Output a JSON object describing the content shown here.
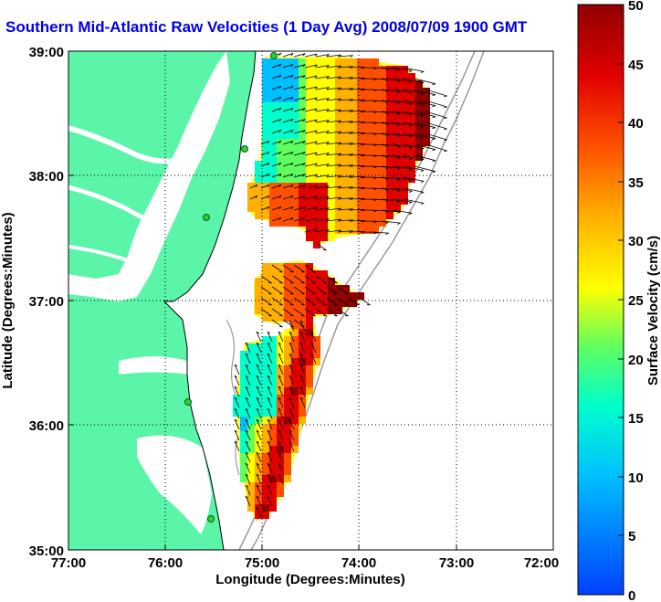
{
  "title": "Southern Mid-Atlantic Raw Velocities (1 Day Avg) 2008/07/09 1900 GMT",
  "x_axis": {
    "label": "Longitude (Degrees:Minutes)",
    "ticks": [
      "77:00",
      "76:00",
      "75:00",
      "74:00",
      "73:00",
      "72:00"
    ]
  },
  "y_axis": {
    "label": "Latitude (Degrees:Minutes)",
    "ticks": [
      "39:00",
      "38:00",
      "37:00",
      "36:00",
      "35:00"
    ]
  },
  "colorbar": {
    "label": "Surface Velocity (cm/s)",
    "ticks": [
      "50",
      "45",
      "40",
      "35",
      "30",
      "25",
      "20",
      "15",
      "10",
      "5",
      "0"
    ],
    "min": 0,
    "max": 50,
    "colors": [
      "#0040ff",
      "#00bfff",
      "#00ffcc",
      "#60ff60",
      "#ffff00",
      "#ffb000",
      "#ff5000",
      "#e00000",
      "#900000"
    ]
  },
  "colors": {
    "land": "#5af5a8",
    "title": "#0000e6",
    "bathymetry": "#999999",
    "station": "#2ecc40"
  },
  "map": {
    "lon_range": [
      -77,
      -72
    ],
    "lat_range": [
      35,
      39
    ],
    "grid": true
  }
}
